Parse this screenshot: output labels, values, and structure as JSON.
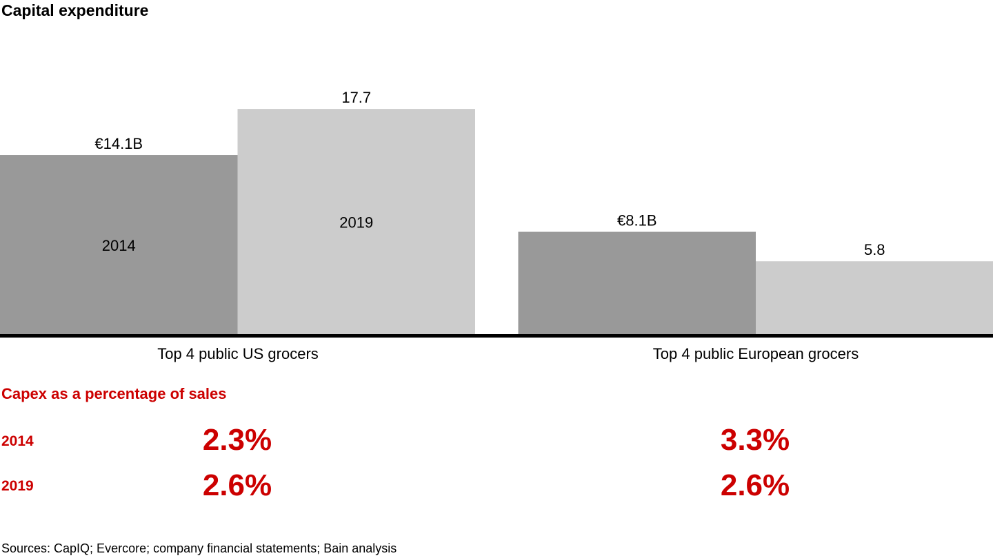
{
  "title": "Capital expenditure",
  "chart_data": {
    "type": "bar",
    "categories": [
      "Top 4 public US grocers",
      "Top 4 public European grocers"
    ],
    "series": [
      {
        "name": "2014",
        "values": [
          14.1,
          8.1
        ],
        "color": "#999999",
        "labels": [
          "€14.1B",
          "€8.1B"
        ]
      },
      {
        "name": "2019",
        "values": [
          17.7,
          5.8
        ],
        "color": "#cccccc",
        "labels": [
          "17.7",
          "5.8"
        ]
      }
    ],
    "unit": "€B",
    "ylim": [
      0,
      18
    ],
    "grid": false
  },
  "percent_table": {
    "title": "Capex as a percentage of sales",
    "rows": [
      {
        "year": "2014",
        "values": [
          "2.3%",
          "3.3%"
        ]
      },
      {
        "year": "2019",
        "values": [
          "2.6%",
          "2.6%"
        ]
      }
    ],
    "color": "#cc0000"
  },
  "source": "Sources: CapIQ; Evercore; company financial statements; Bain analysis"
}
